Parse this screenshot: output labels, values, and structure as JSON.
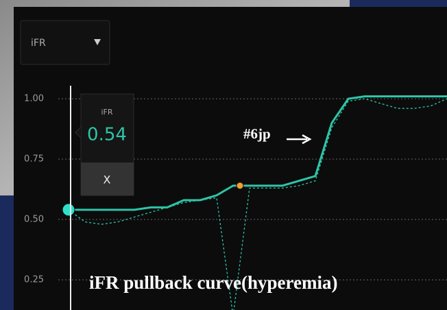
{
  "dropdown": {
    "label": "iFR"
  },
  "readout": {
    "label": "iFR",
    "value": "0.54",
    "close": "X"
  },
  "annotation": "#6jp",
  "caption": "iFR pullback curve(hyperemia)",
  "chart_data": {
    "type": "line",
    "ylim": [
      0.125,
      1.125
    ],
    "yticks": [
      {
        "value": 1,
        "label": "1.00"
      },
      0.75,
      {
        "value": 0.5,
        "label": "0.50"
      },
      0.25
    ],
    "grid": true,
    "series": [
      {
        "color": "#2ec4a8",
        "style": "solid",
        "values": [
          0.54,
          0.54,
          0.54,
          0.54,
          0.54,
          0.55,
          0.55,
          0.58,
          0.58,
          0.6,
          0.64,
          0.64,
          0.64,
          0.64,
          0.66,
          0.68,
          0.9,
          1.0,
          1.01,
          1.01,
          1.01,
          1.01,
          1.01,
          1.01
        ]
      },
      {
        "color": "#2ec4a8",
        "style": "dashed",
        "values": [
          0.54,
          0.49,
          0.48,
          0.49,
          0.51,
          0.53,
          0.55,
          0.57,
          0.58,
          0.59,
          0.1,
          0.63,
          0.63,
          0.63,
          0.64,
          0.66,
          0.88,
          0.99,
          1.0,
          0.98,
          0.96,
          0.96,
          0.97,
          1.0
        ]
      }
    ]
  }
}
